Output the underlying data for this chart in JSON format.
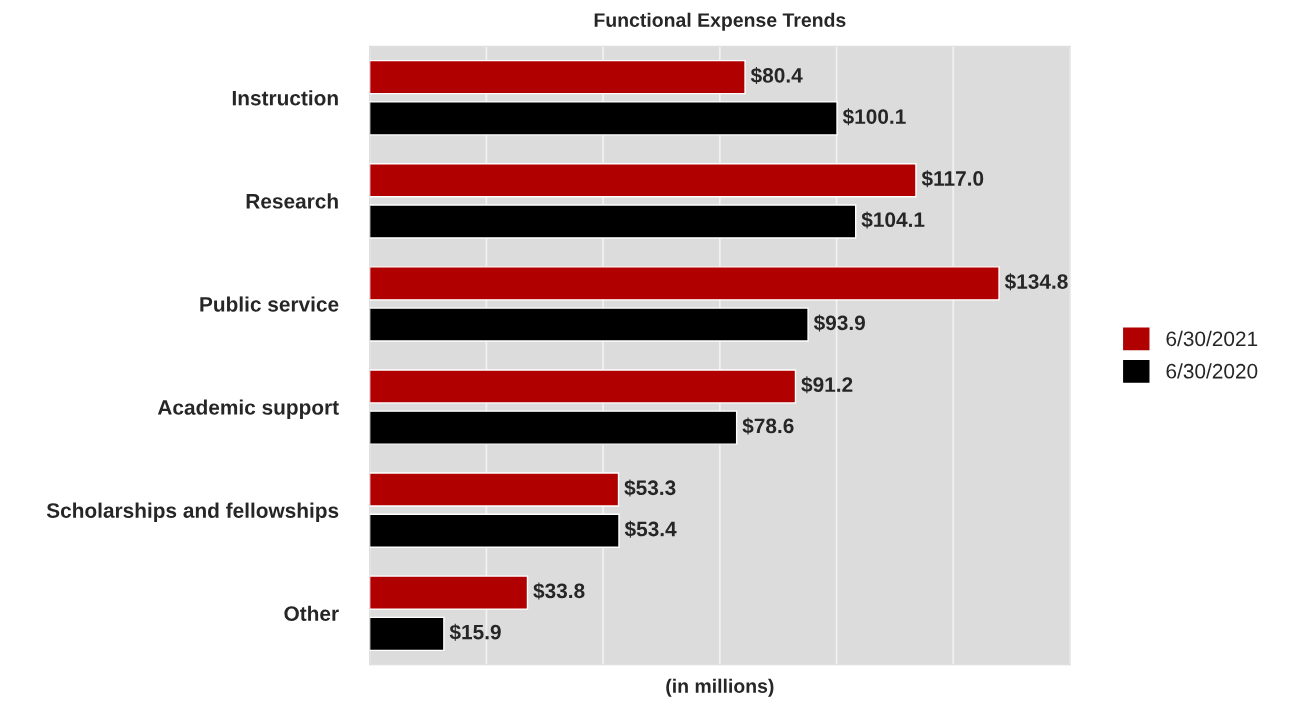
{
  "chart_data": {
    "type": "bar",
    "orientation": "horizontal",
    "title": "Functional Expense Trends",
    "xlabel": "(in millions)",
    "categories": [
      "Instruction",
      "Research",
      "Public service",
      "Academic support",
      "Scholarships and fellowships",
      "Other"
    ],
    "series": [
      {
        "name": "6/30/2021",
        "color": "#b00000",
        "values": [
          80.4,
          117.0,
          134.8,
          91.2,
          53.3,
          33.8
        ],
        "value_labels": [
          "$80.4",
          "$117.0",
          "$134.8",
          "$91.2",
          "$53.3",
          "$33.8"
        ]
      },
      {
        "name": "6/30/2020",
        "color": "#000000",
        "values": [
          100.1,
          104.1,
          93.9,
          78.6,
          53.4,
          15.9
        ],
        "value_labels": [
          "$100.1",
          "$104.1",
          "$93.9",
          "$78.6",
          "$53.4",
          "$15.9"
        ]
      }
    ],
    "xlim": [
      0,
      150
    ],
    "xticks": [
      {
        "value": 0,
        "label": null
      },
      {
        "value": 25,
        "label": null
      },
      {
        "value": 50,
        "label": null
      },
      {
        "value": 75,
        "label": null
      },
      {
        "value": 100,
        "label": null
      },
      {
        "value": 125,
        "label": null
      },
      {
        "value": 150,
        "label": null
      }
    ],
    "tick_labels": "y",
    "grid": "x",
    "legend": "right"
  }
}
